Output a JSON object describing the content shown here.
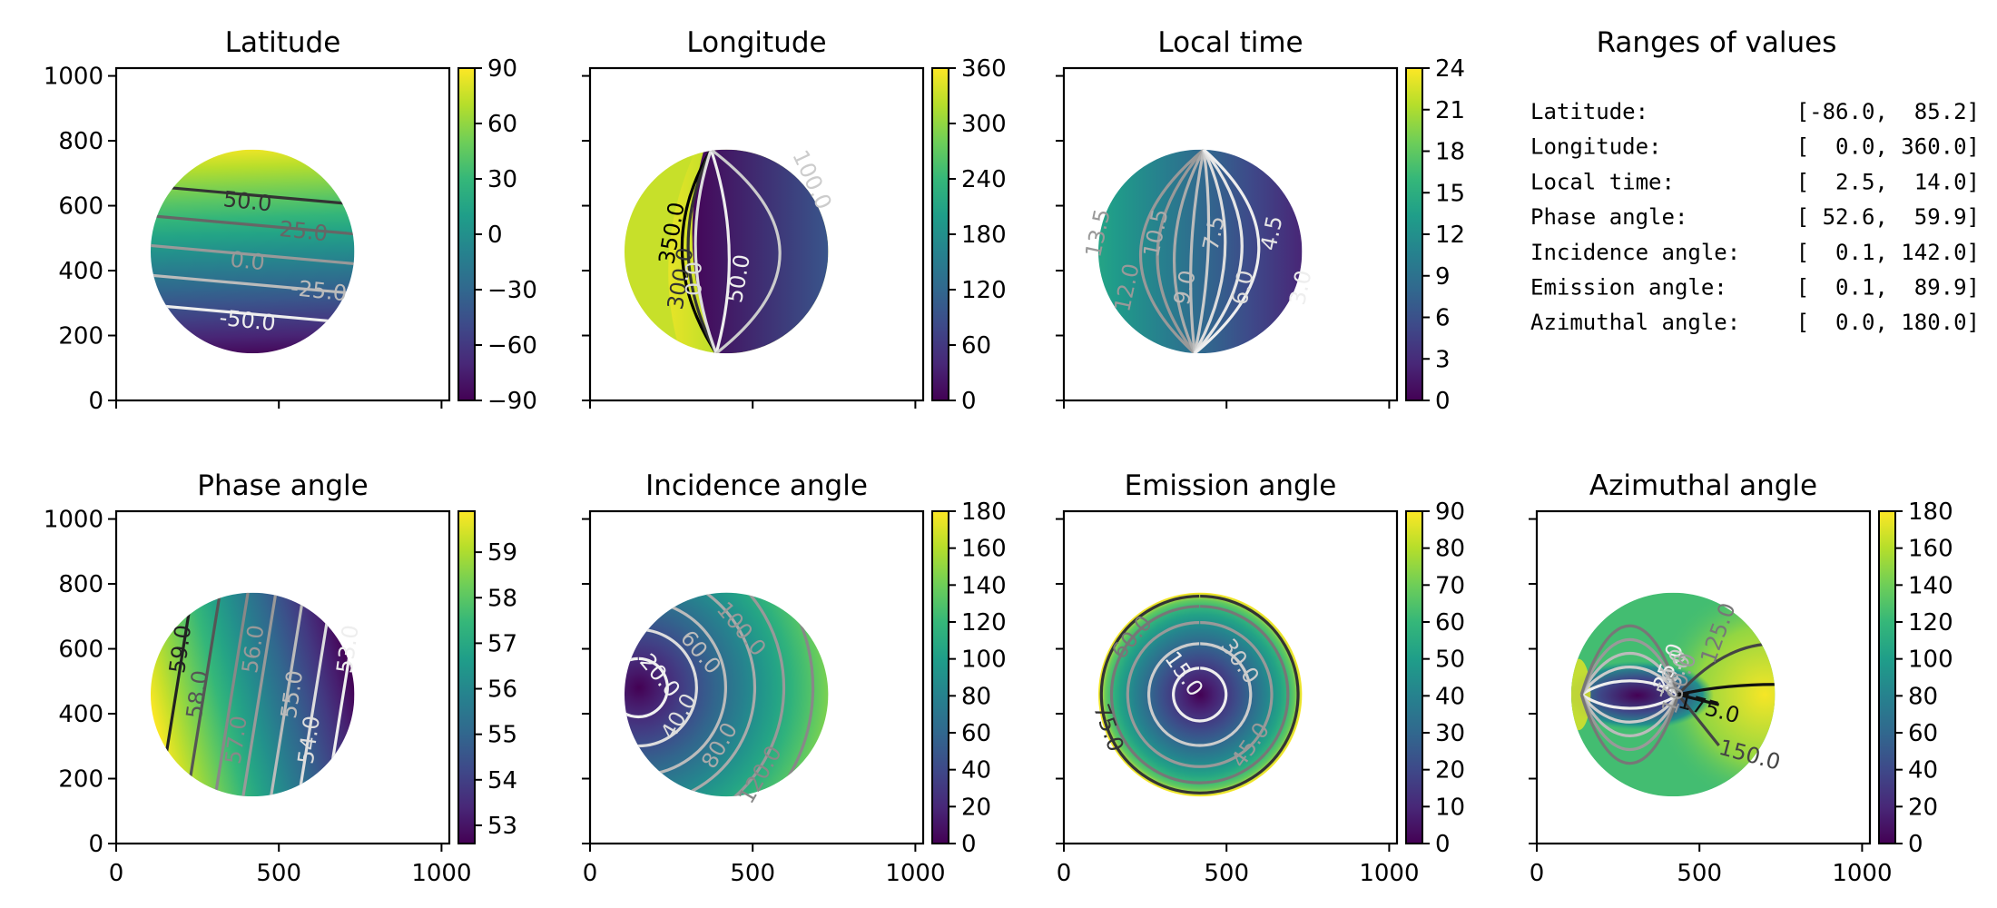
{
  "figure": {
    "background": "#ffffff",
    "colormap": "viridis",
    "colormap_stops": [
      "#440154",
      "#482878",
      "#3e4989",
      "#31688e",
      "#26828e",
      "#1f9e89",
      "#35b779",
      "#6ece58",
      "#b5de2b",
      "#fde725"
    ]
  },
  "chart_data": [
    {
      "type": "heatmap",
      "id": "latitude",
      "title": "Latitude",
      "xlim": [
        0,
        1024
      ],
      "ylim": [
        0,
        1024
      ],
      "xticks": [
        "",
        "",
        ""
      ],
      "yticks": [
        "0",
        "200",
        "400",
        "600",
        "800",
        "1000"
      ],
      "xtick_values": [
        0,
        500,
        1000
      ],
      "ytick_values": [
        0,
        200,
        400,
        600,
        800,
        1000
      ],
      "colorbar": {
        "range": [
          -90,
          90
        ],
        "ticks": [
          -90,
          -60,
          -30,
          0,
          30,
          60,
          90
        ],
        "tick_labels": [
          "−90",
          "−60",
          "−30",
          "0",
          "30",
          "60",
          "90"
        ]
      },
      "disk": {
        "center": [
          419,
          459
        ],
        "radius": 313
      },
      "field": {
        "kind": "linear",
        "angle_deg": 92,
        "min": -86.0,
        "max": 85.2
      },
      "contours": [
        {
          "value": 50.0,
          "label": "50.0",
          "color": "#333333"
        },
        {
          "value": 25.0,
          "label": "25.0",
          "color": "#666666"
        },
        {
          "value": 0.0,
          "label": "0.0",
          "color": "#999999"
        },
        {
          "value": -25.0,
          "label": "-25.0",
          "color": "#bbbbbb"
        },
        {
          "value": -50.0,
          "label": "-50.0",
          "color": "#eeeeee"
        }
      ]
    },
    {
      "type": "heatmap",
      "id": "longitude",
      "title": "Longitude",
      "xlim": [
        0,
        1024
      ],
      "ylim": [
        0,
        1024
      ],
      "xticks": [
        "",
        "",
        ""
      ],
      "yticks": [
        "",
        "",
        "",
        "",
        "",
        ""
      ],
      "xtick_values": [
        0,
        500,
        1000
      ],
      "ytick_values": [
        0,
        200,
        400,
        600,
        800,
        1000
      ],
      "colorbar": {
        "range": [
          0,
          360
        ],
        "ticks": [
          0,
          60,
          120,
          180,
          240,
          300,
          360
        ],
        "tick_labels": [
          "0",
          "60",
          "120",
          "180",
          "240",
          "300",
          "360"
        ]
      },
      "disk": {
        "center": [
          419,
          459
        ],
        "radius": 313
      },
      "field": {
        "kind": "longitude",
        "min": 0.0,
        "max": 360.0
      },
      "contours": [
        {
          "value": 350.0,
          "label": "350.0",
          "color": "#000000"
        },
        {
          "value": 300.0,
          "label": "300.0",
          "color": "#333333"
        },
        {
          "value": 0.0,
          "label": "0.0",
          "color": "#dddddd"
        },
        {
          "value": 50.0,
          "label": "50.0",
          "color": "#eeeeee"
        },
        {
          "value": 100.0,
          "label": "100.0",
          "color": "#cccccc"
        }
      ]
    },
    {
      "type": "heatmap",
      "id": "local_time",
      "title": "Local time",
      "xlim": [
        0,
        1024
      ],
      "ylim": [
        0,
        1024
      ],
      "xticks": [
        "",
        "",
        ""
      ],
      "yticks": [
        "",
        "",
        "",
        "",
        "",
        ""
      ],
      "xtick_values": [
        0,
        500,
        1000
      ],
      "ytick_values": [
        0,
        200,
        400,
        600,
        800,
        1000
      ],
      "colorbar": {
        "range": [
          0,
          24
        ],
        "ticks": [
          0,
          3,
          6,
          9,
          12,
          15,
          18,
          21,
          24
        ],
        "tick_labels": [
          "0",
          "3",
          "6",
          "9",
          "12",
          "15",
          "18",
          "21",
          "24"
        ]
      },
      "disk": {
        "center": [
          419,
          459
        ],
        "radius": 313
      },
      "field": {
        "kind": "linear",
        "angle_deg": 180,
        "min": 2.5,
        "max": 14.0
      },
      "contours": [
        {
          "value": 13.5,
          "label": "13.5",
          "color": "#999999"
        },
        {
          "value": 12.0,
          "label": "12.0",
          "color": "#999999"
        },
        {
          "value": 10.5,
          "label": "10.5",
          "color": "#aaaaaa"
        },
        {
          "value": 9.0,
          "label": "9.0",
          "color": "#bbbbbb"
        },
        {
          "value": 7.5,
          "label": "7.5",
          "color": "#cccccc"
        },
        {
          "value": 6.0,
          "label": "6.0",
          "color": "#dddddd"
        },
        {
          "value": 4.5,
          "label": "4.5",
          "color": "#e6e6e6"
        },
        {
          "value": 3.0,
          "label": "3.0",
          "color": "#eeeeee"
        }
      ]
    },
    {
      "type": "heatmap",
      "id": "phase_angle",
      "title": "Phase angle",
      "xlim": [
        0,
        1024
      ],
      "ylim": [
        0,
        1024
      ],
      "xticks": [
        "0",
        "500",
        "1000"
      ],
      "yticks": [
        "0",
        "200",
        "400",
        "600",
        "800",
        "1000"
      ],
      "xtick_values": [
        0,
        500,
        1000
      ],
      "ytick_values": [
        0,
        200,
        400,
        600,
        800,
        1000
      ],
      "colorbar": {
        "range": [
          52.6,
          59.9
        ],
        "ticks": [
          53,
          54,
          55,
          56,
          57,
          58,
          59
        ],
        "tick_labels": [
          "53",
          "54",
          "55",
          "56",
          "57",
          "58",
          "59"
        ]
      },
      "disk": {
        "center": [
          419,
          459
        ],
        "radius": 313
      },
      "field": {
        "kind": "linear",
        "angle_deg": 194,
        "min": 52.6,
        "max": 59.9
      },
      "contours": [
        {
          "value": 59.0,
          "label": "59.0",
          "color": "#222222"
        },
        {
          "value": 58.0,
          "label": "58.0",
          "color": "#555555"
        },
        {
          "value": 57.0,
          "label": "57.0",
          "color": "#888888"
        },
        {
          "value": 56.0,
          "label": "56.0",
          "color": "#999999"
        },
        {
          "value": 55.0,
          "label": "55.0",
          "color": "#bbbbbb"
        },
        {
          "value": 54.0,
          "label": "54.0",
          "color": "#dddddd"
        },
        {
          "value": 53.0,
          "label": "53.0",
          "color": "#eeeeee"
        }
      ]
    },
    {
      "type": "heatmap",
      "id": "incidence_angle",
      "title": "Incidence angle",
      "xlim": [
        0,
        1024
      ],
      "ylim": [
        0,
        1024
      ],
      "xticks": [
        "0",
        "500",
        "1000"
      ],
      "yticks": [
        "",
        "",
        "",
        "",
        "",
        ""
      ],
      "xtick_values": [
        0,
        500,
        1000
      ],
      "ytick_values": [
        0,
        200,
        400,
        600,
        800,
        1000
      ],
      "colorbar": {
        "range": [
          0,
          180
        ],
        "ticks": [
          0,
          20,
          40,
          60,
          80,
          100,
          120,
          140,
          160,
          180
        ],
        "tick_labels": [
          "0",
          "20",
          "40",
          "60",
          "80",
          "100",
          "120",
          "140",
          "160",
          "180"
        ]
      },
      "disk": {
        "center": [
          419,
          459
        ],
        "radius": 313
      },
      "field": {
        "kind": "radial",
        "center": [
          150,
          480
        ],
        "min": 0.1,
        "max": 142.0
      },
      "contours": [
        {
          "value": 20.0,
          "label": "20.0",
          "color": "#f0f0f0"
        },
        {
          "value": 40.0,
          "label": "40.0",
          "color": "#dddddd"
        },
        {
          "value": 60.0,
          "label": "60.0",
          "color": "#bbbbbb"
        },
        {
          "value": 80.0,
          "label": "80.0",
          "color": "#aaaaaa"
        },
        {
          "value": 100.0,
          "label": "100.0",
          "color": "#999999"
        },
        {
          "value": 120.0,
          "label": "120.0",
          "color": "#888888"
        }
      ]
    },
    {
      "type": "heatmap",
      "id": "emission_angle",
      "title": "Emission angle",
      "xlim": [
        0,
        1024
      ],
      "ylim": [
        0,
        1024
      ],
      "xticks": [
        "0",
        "500",
        "1000"
      ],
      "yticks": [
        "",
        "",
        "",
        "",
        "",
        ""
      ],
      "xtick_values": [
        0,
        500,
        1000
      ],
      "ytick_values": [
        0,
        200,
        400,
        600,
        800,
        1000
      ],
      "colorbar": {
        "range": [
          0,
          90
        ],
        "ticks": [
          0,
          10,
          20,
          30,
          40,
          50,
          60,
          70,
          80,
          90
        ],
        "tick_labels": [
          "0",
          "10",
          "20",
          "30",
          "40",
          "50",
          "60",
          "70",
          "80",
          "90"
        ]
      },
      "disk": {
        "center": [
          419,
          459
        ],
        "radius": 313
      },
      "field": {
        "kind": "emission",
        "min": 0.1,
        "max": 89.9
      },
      "contours": [
        {
          "value": 15.0,
          "label": "15.0",
          "color": "#eeeeee"
        },
        {
          "value": 30.0,
          "label": "30.0",
          "color": "#cccccc"
        },
        {
          "value": 45.0,
          "label": "45.0",
          "color": "#999999"
        },
        {
          "value": 60.0,
          "label": "60.0",
          "color": "#777777"
        },
        {
          "value": 75.0,
          "label": "75.0",
          "color": "#333333"
        }
      ]
    },
    {
      "type": "heatmap",
      "id": "azimuthal_angle",
      "title": "Azimuthal angle",
      "xlim": [
        0,
        1024
      ],
      "ylim": [
        0,
        1024
      ],
      "xticks": [
        "0",
        "500",
        "1000"
      ],
      "yticks": [
        "",
        "",
        "",
        "",
        "",
        ""
      ],
      "xtick_values": [
        0,
        500,
        1000
      ],
      "ytick_values": [
        0,
        200,
        400,
        600,
        800,
        1000
      ],
      "colorbar": {
        "range": [
          0,
          180
        ],
        "ticks": [
          0,
          20,
          40,
          60,
          80,
          100,
          120,
          140,
          160,
          180
        ],
        "tick_labels": [
          "0",
          "20",
          "40",
          "60",
          "80",
          "100",
          "120",
          "140",
          "160",
          "180"
        ]
      },
      "disk": {
        "center": [
          419,
          459
        ],
        "radius": 313
      },
      "field": {
        "kind": "azimuth",
        "min": 0.0,
        "max": 180.0
      },
      "contours": [
        {
          "value": 25.0,
          "label": "25.0",
          "color": "#eeeeee"
        },
        {
          "value": 50.0,
          "label": "50.0",
          "color": "#cccccc"
        },
        {
          "value": 75.0,
          "label": "75.0",
          "color": "#bbbbbb"
        },
        {
          "value": 100.0,
          "label": "100.0",
          "color": "#999999"
        },
        {
          "value": 125.0,
          "label": "125.0",
          "color": "#777777"
        },
        {
          "value": 150.0,
          "label": "150.0",
          "color": "#444444"
        },
        {
          "value": 175.0,
          "label": "175.0",
          "color": "#111111"
        }
      ]
    }
  ],
  "ranges_panel": {
    "title": "Ranges of values",
    "rows": [
      {
        "label": "Latitude:",
        "range": "[-86.0,  85.2]"
      },
      {
        "label": "Longitude:",
        "range": "[  0.0, 360.0]"
      },
      {
        "label": "Local time:",
        "range": "[  2.5,  14.0]"
      },
      {
        "label": "Phase angle:",
        "range": "[ 52.6,  59.9]"
      },
      {
        "label": "Incidence angle:",
        "range": "[  0.1, 142.0]"
      },
      {
        "label": "Emission angle:",
        "range": "[  0.1,  89.9]"
      },
      {
        "label": "Azimuthal angle:",
        "range": "[  0.0, 180.0]"
      }
    ]
  }
}
